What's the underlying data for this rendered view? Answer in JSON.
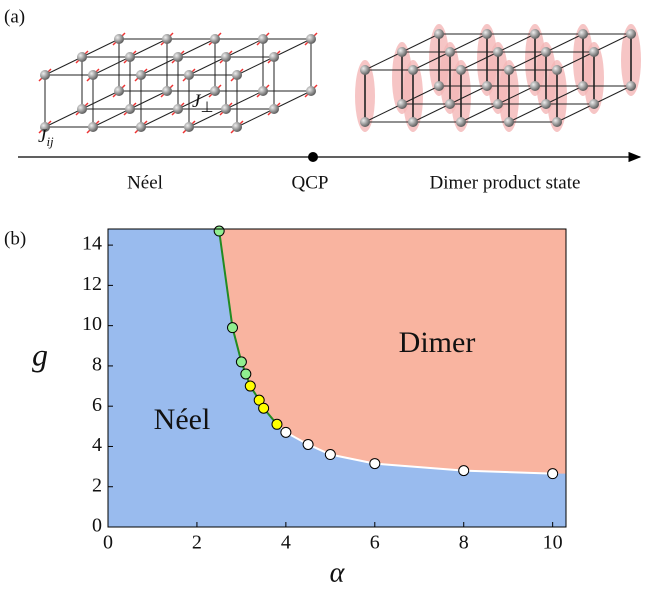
{
  "panel_a": {
    "label": "(a)",
    "j_ij": {
      "symbol": "J",
      "subscript": "ij"
    },
    "j_perp": {
      "symbol": "J",
      "subscript": "⊥"
    },
    "axis_labels": [
      "Néel",
      "QCP",
      "Dimer product state"
    ]
  },
  "chart_data": {
    "type": "scatter",
    "panel_label": "(b)",
    "x_label": "α",
    "y_label": "g",
    "annotations": [
      "Dimer",
      "Néel"
    ],
    "xlim": [
      0,
      10.3
    ],
    "ylim": [
      0,
      14.8
    ],
    "xticks": [
      0,
      2,
      4,
      6,
      8,
      10
    ],
    "yticks": [
      0,
      2,
      4,
      6,
      8,
      10,
      12,
      14
    ],
    "region_colors": {
      "neel": "#99bbee",
      "dimer": "#f9b4a0"
    },
    "series": [
      {
        "color": "#90ee90",
        "line_color": "#228b22",
        "x": [
          2.5,
          2.8,
          3.0,
          3.1
        ],
        "values": [
          14.7,
          9.9,
          8.2,
          7.6
        ]
      },
      {
        "color": "#ffff00",
        "line_color": "#228b22",
        "x": [
          3.2,
          3.4,
          3.5,
          3.8
        ],
        "values": [
          7.0,
          6.3,
          5.9,
          5.1
        ]
      },
      {
        "color": "#ffffff",
        "line_color": "#ffffff",
        "x": [
          4.0,
          4.5,
          5.0,
          6.0,
          8.0,
          10.0
        ],
        "values": [
          4.7,
          4.1,
          3.6,
          3.15,
          2.8,
          2.65
        ]
      }
    ]
  }
}
